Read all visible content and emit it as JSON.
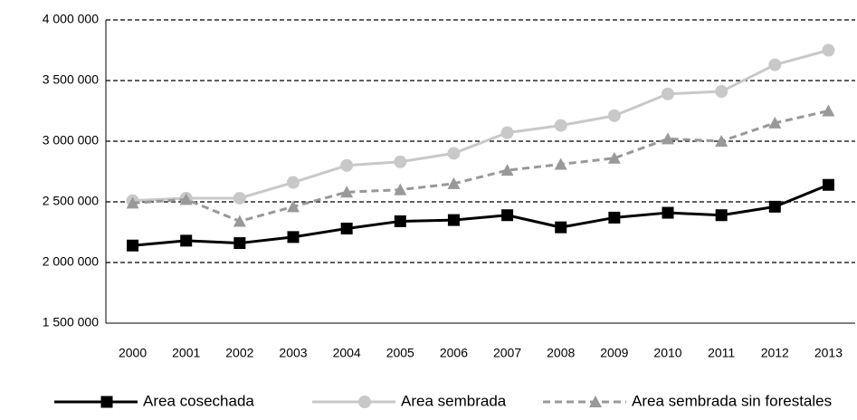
{
  "chart_data": {
    "type": "line",
    "categories": [
      "2000",
      "2001",
      "2002",
      "2003",
      "2004",
      "2005",
      "2006",
      "2007",
      "2008",
      "2009",
      "2010",
      "2011",
      "2012",
      "2013"
    ],
    "series": [
      {
        "name": "Area cosechada",
        "color": "#000000",
        "marker": "square",
        "dash": false,
        "values": [
          2140000,
          2180000,
          2160000,
          2210000,
          2280000,
          2340000,
          2350000,
          2390000,
          2290000,
          2370000,
          2410000,
          2390000,
          2460000,
          2640000
        ]
      },
      {
        "name": "Area sembrada",
        "color": "#c8c8c8",
        "marker": "circle",
        "dash": false,
        "values": [
          2510000,
          2530000,
          2530000,
          2660000,
          2800000,
          2830000,
          2900000,
          3070000,
          3130000,
          3210000,
          3390000,
          3410000,
          3630000,
          3750000
        ]
      },
      {
        "name": "Area sembrada sin forestales",
        "color": "#999999",
        "marker": "triangle",
        "dash": true,
        "values": [
          2490000,
          2520000,
          2340000,
          2460000,
          2580000,
          2600000,
          2650000,
          2760000,
          2810000,
          2860000,
          3020000,
          3000000,
          3150000,
          3250000
        ]
      }
    ],
    "ylim": [
      1500000,
      4000000
    ],
    "yticks": [
      {
        "value": 1500000,
        "label": "1 500 000"
      },
      {
        "value": 2000000,
        "label": "2 000 000"
      },
      {
        "value": 2500000,
        "label": "2 500 000"
      },
      {
        "value": 3000000,
        "label": "3 000 000"
      },
      {
        "value": 3500000,
        "label": "3 500 000"
      },
      {
        "value": 4000000,
        "label": "4 000 000"
      }
    ],
    "grid": true,
    "legend": "bottom"
  }
}
